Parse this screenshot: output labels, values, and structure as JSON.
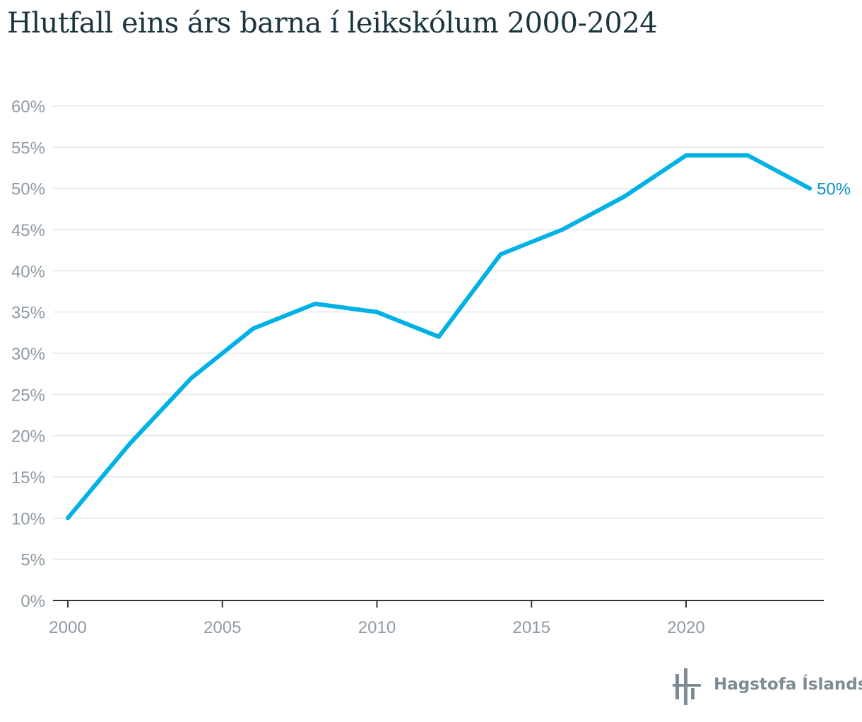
{
  "chart_data": {
    "type": "line",
    "title": "Hlutfall eins árs barna í leikskólum 2000-2024",
    "xlabel": "",
    "ylabel": "",
    "x": [
      2000,
      2002,
      2004,
      2006,
      2008,
      2010,
      2012,
      2014,
      2016,
      2018,
      2020,
      2022,
      2024
    ],
    "series": [
      {
        "values": [
          10,
          19,
          27,
          33,
          36,
          35,
          32,
          42,
          45,
          49,
          54,
          54,
          50
        ],
        "color": "#00b1e6"
      }
    ],
    "xlim": [
      2000,
      2024
    ],
    "ylim": [
      0,
      60
    ],
    "x_ticks": [
      2000,
      2005,
      2010,
      2015,
      2020
    ],
    "y_ticks": [
      0,
      5,
      10,
      15,
      20,
      25,
      30,
      35,
      40,
      45,
      50,
      55,
      60
    ],
    "y_tick_labels": [
      "0%",
      "5%",
      "10%",
      "15%",
      "20%",
      "25%",
      "30%",
      "35%",
      "40%",
      "45%",
      "50%",
      "55%",
      "60%"
    ],
    "end_label": "50%",
    "end_label_color": "#0f92c4",
    "grid": true,
    "legend": "none"
  },
  "source": {
    "logo_text": "Hagstofa Íslands",
    "logo_color": "#7d8b93"
  }
}
